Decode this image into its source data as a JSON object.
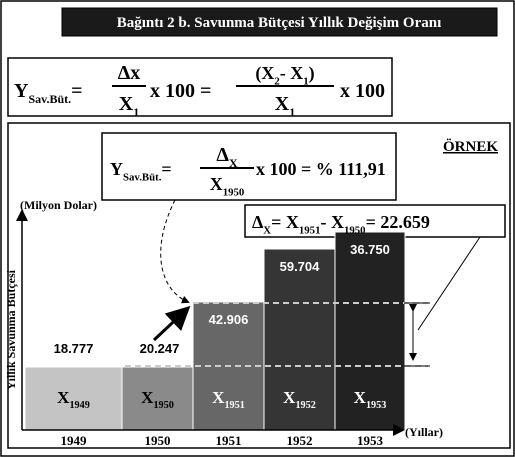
{
  "title": "Bağıntı 2 b.  Savunma Bütçesi Yıllık Değişim Oranı",
  "formula": {
    "lhs": "Y",
    "lhs_sub": "Sav.Büt.",
    "eq": "=",
    "num1": "Δx",
    "den1": "X",
    "den1_sub": "1",
    "mult1": "x 100 =",
    "num2": "(X",
    "num2_sub_a": "2",
    "num2_mid": "- X",
    "num2_sub_b": "1",
    "num2_end": ")",
    "den2": "X",
    "den2_sub": "1",
    "mult2": "x 100"
  },
  "example": {
    "label": "ÖRNEK",
    "lhs": "Y",
    "lhs_sub": "Sav.Büt.",
    "eq": "=",
    "num": "Δ",
    "num_sub": "X",
    "den": "X",
    "den_sub": "1950",
    "rhs": "x 100 = % 111,91"
  },
  "delta": {
    "d": "Δ",
    "d_sub": "X",
    "eq": "= X",
    "a_sub": "1951",
    "minus": "- X",
    "b_sub": "1950",
    "result": "= 22.659"
  },
  "y_axis_label": "(Milyon Dolar)",
  "y_axis_title": "Yıllık Savunma Bütçesi",
  "x_axis_label": "(Yıllar)",
  "bars": [
    {
      "year": "1949",
      "value": "18.777",
      "symbol": "X",
      "sub": "1949"
    },
    {
      "year": "1950",
      "value": "20.247",
      "symbol": "X",
      "sub": "1950"
    },
    {
      "year": "1951",
      "value": "42.906",
      "symbol": "X",
      "sub": "1951"
    },
    {
      "year": "1952",
      "value": "59.704",
      "symbol": "X",
      "sub": "1952"
    },
    {
      "year": "1953",
      "value": "36.750",
      "symbol": "X",
      "sub": "1953"
    }
  ]
}
